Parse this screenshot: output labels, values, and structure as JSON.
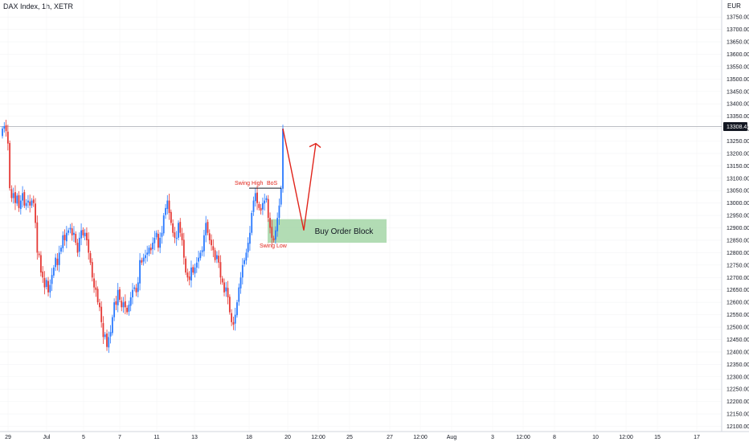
{
  "title": "DAX Index, 1h, XETR",
  "currency": "EUR",
  "colors": {
    "up": "#2979ff",
    "down": "#e53935",
    "annotation": "#e0241b",
    "zone": "#a5d6a7",
    "price_tag": "#131722"
  },
  "chart_data": {
    "type": "candlestick",
    "title": "DAX Index, 1h, XETR",
    "yunit": "EUR",
    "ylim": [
      12080,
      13790
    ],
    "y_ticks": [
      13750,
      13700,
      13650,
      13600,
      13550,
      13500,
      13450,
      13400,
      13350,
      13300,
      13250,
      13200,
      13150,
      13100,
      13050,
      13000,
      12950,
      12900,
      12850,
      12800,
      12750,
      12700,
      12650,
      12600,
      12550,
      12500,
      12450,
      12400,
      12350,
      12300,
      12250,
      12200,
      12150,
      12100
    ],
    "x_ticks": [
      "29",
      "Jul",
      "5",
      "7",
      "11",
      "13",
      "18",
      "20",
      "12:00",
      "25",
      "27",
      "12:00",
      "Aug",
      "3",
      "12:00",
      "8",
      "10",
      "12:00",
      "15",
      "17"
    ],
    "last_price": "13308.41",
    "close": [
      13300,
      13310,
      13290,
      13240,
      13060,
      13020,
      13040,
      13000,
      13030,
      12980,
      13010,
      13040,
      12990,
      13000,
      13010,
      12990,
      13010,
      13000,
      12920,
      12800,
      12790,
      12720,
      12700,
      12660,
      12690,
      12640,
      12670,
      12710,
      12740,
      12780,
      12750,
      12800,
      12820,
      12870,
      12850,
      12880,
      12890,
      12900,
      12870,
      12880,
      12840,
      12800,
      12860,
      12890,
      12870,
      12880,
      12850,
      12800,
      12760,
      12700,
      12660,
      12650,
      12600,
      12580,
      12520,
      12460,
      12470,
      12420,
      12460,
      12480,
      12540,
      12600,
      12590,
      12650,
      12610,
      12580,
      12600,
      12580,
      12560,
      12590,
      12620,
      12650,
      12660,
      12640,
      12680,
      12770,
      12760,
      12780,
      12790,
      12800,
      12820,
      12810,
      12840,
      12860,
      12880,
      12820,
      12860,
      12880,
      12950,
      12980,
      13010,
      12960,
      12920,
      12880,
      12860,
      12860,
      12920,
      12880,
      12850,
      12780,
      12720,
      12700,
      12690,
      12740,
      12720,
      12740,
      12760,
      12780,
      12800,
      12810,
      12870,
      12920,
      12880,
      12850,
      12830,
      12810,
      12770,
      12790,
      12760,
      12700,
      12680,
      12640,
      12660,
      12620,
      12560,
      12520,
      12510,
      12550,
      12600,
      12660,
      12700,
      12750,
      12770,
      12800,
      12840,
      12880,
      12960,
      13010,
      13040,
      13000,
      12980,
      12970,
      13000,
      13010,
      13020,
      12940,
      12900,
      12860,
      12850,
      12890,
      12940,
      12990,
      13060,
      13300
    ],
    "annotations": [
      {
        "text": "Swing High",
        "value": 13060
      },
      {
        "text": "BoS",
        "value": 13060
      },
      {
        "text": "Swing Low",
        "value": 12850
      },
      {
        "text": "Buy Order Block",
        "range": [
          12840,
          12935
        ]
      }
    ],
    "projection": {
      "from": 13300,
      "to": 12890,
      "then": 13240
    }
  }
}
